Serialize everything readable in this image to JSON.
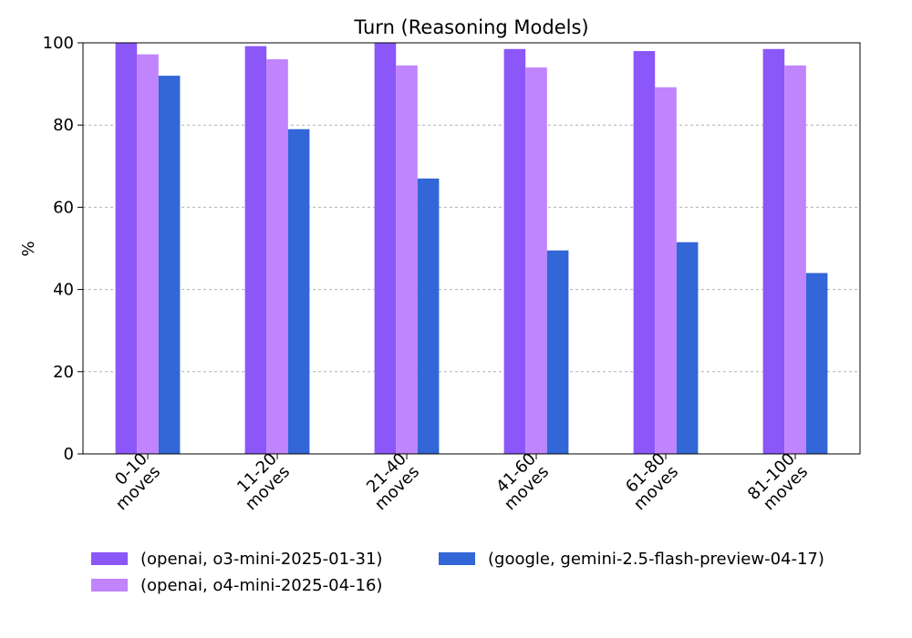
{
  "chart_data": {
    "type": "bar",
    "title": "Turn (Reasoning Models)",
    "xlabel": "",
    "ylabel": "%",
    "ylim": [
      0,
      100
    ],
    "yticks": [
      0,
      20,
      40,
      60,
      80,
      100
    ],
    "grid": "y-dashed",
    "legend_position": "bottom",
    "categories": [
      [
        "0-10",
        "moves"
      ],
      [
        "11-20",
        "moves"
      ],
      [
        "21-40",
        "moves"
      ],
      [
        "41-60",
        "moves"
      ],
      [
        "61-80",
        "moves"
      ],
      [
        "81-100",
        "moves"
      ]
    ],
    "series": [
      {
        "name": "(openai, o3-mini-2025-01-31)",
        "color": "#8b57f8",
        "values": [
          100,
          99.2,
          100,
          98.5,
          98.0,
          98.5
        ]
      },
      {
        "name": "(openai, o4-mini-2025-04-16)",
        "color": "#c084fc",
        "values": [
          97.2,
          96.0,
          94.5,
          94.0,
          89.2,
          94.5
        ]
      },
      {
        "name": "(google, gemini-2.5-flash-preview-04-17)",
        "color": "#3366d6",
        "values": [
          92.0,
          79.0,
          67.0,
          49.5,
          51.5,
          44.0
        ]
      }
    ]
  }
}
